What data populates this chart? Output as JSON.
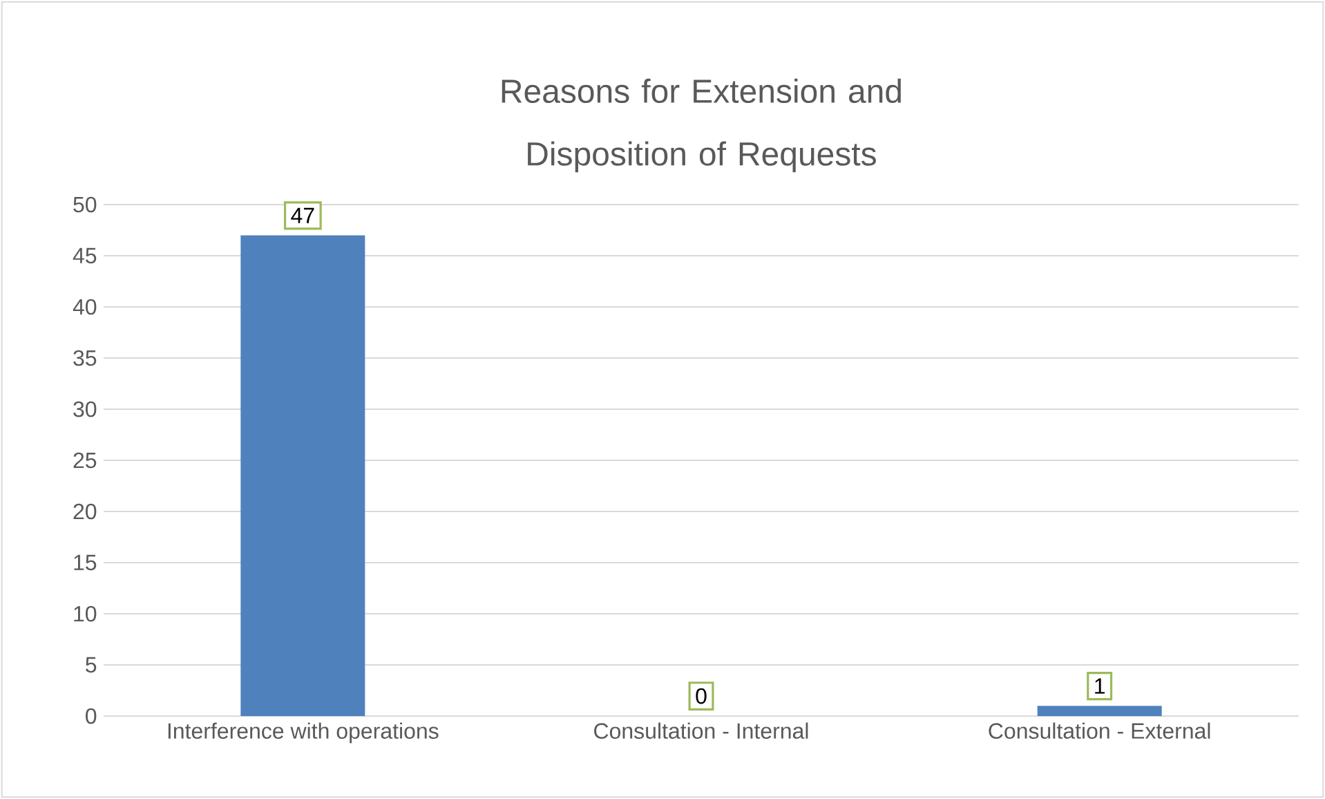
{
  "chart_data": {
    "type": "bar",
    "title": "Reasons for Extension and Disposition of Requests",
    "categories": [
      "Interference with operations",
      "Consultation - Internal",
      "Consultation - External"
    ],
    "values": [
      47,
      0,
      1
    ],
    "color": "#4f81bd",
    "ylim": [
      0,
      50
    ],
    "yticks": [
      0,
      5,
      10,
      15,
      20,
      25,
      30,
      35,
      40,
      45,
      50
    ],
    "grid": "y",
    "data_labels": true
  }
}
